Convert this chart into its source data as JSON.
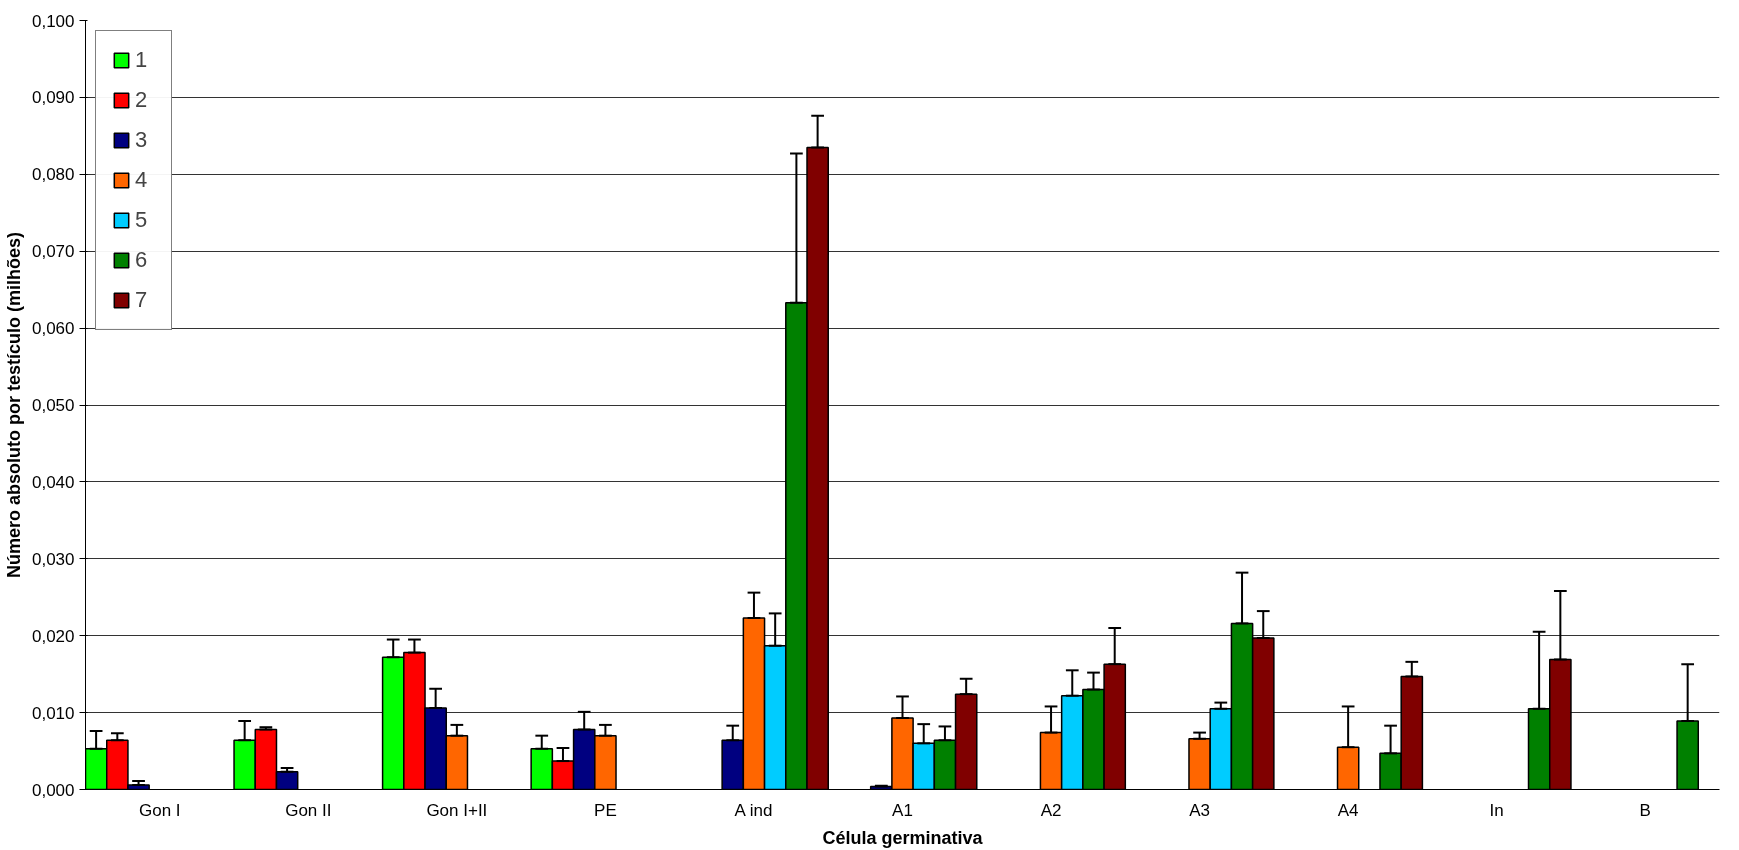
{
  "chart_data": {
    "type": "bar",
    "xlabel": "Célula germinativa",
    "ylabel": "Número absoluto por testículo (milhões)",
    "categories": [
      "Gon I",
      "Gon II",
      "Gon I+II",
      "PE",
      "A ind",
      "A1",
      "A2",
      "A3",
      "A4",
      "In",
      "B"
    ],
    "series": [
      {
        "name": "1",
        "color": "#00ff00",
        "values": [
          0.0053,
          0.0064,
          0.0172,
          0.0053,
          null,
          null,
          null,
          null,
          null,
          null,
          null
        ],
        "errors": [
          [
            0.0053,
            0.0076
          ],
          [
            0.0064,
            0.0089
          ],
          [
            0.0172,
            0.0195
          ],
          [
            0.0053,
            0.007
          ],
          null,
          null,
          null,
          null,
          null,
          null,
          null
        ]
      },
      {
        "name": "2",
        "color": "#ff0000",
        "values": [
          0.0064,
          0.0078,
          0.0178,
          0.0037,
          null,
          null,
          null,
          null,
          null,
          null,
          null
        ],
        "errors": [
          [
            0.0064,
            0.0073
          ],
          [
            0.0078,
            0.0081
          ],
          [
            0.0178,
            0.0195
          ],
          [
            0.0037,
            0.0054
          ],
          null,
          null,
          null,
          null,
          null,
          null,
          null
        ]
      },
      {
        "name": "3",
        "color": "#000080",
        "values": [
          0.0006,
          0.0023,
          0.0106,
          0.0078,
          0.0064,
          0.0004,
          null,
          null,
          null,
          null,
          null
        ],
        "errors": [
          [
            0.0006,
            0.0011
          ],
          [
            0.0023,
            0.0028
          ],
          [
            0.0106,
            0.0131
          ],
          [
            0.0078,
            0.0101
          ],
          [
            0.0064,
            0.0083
          ],
          [
            0.0004,
            0.0005
          ],
          null,
          null,
          null,
          null,
          null
        ]
      },
      {
        "name": "4",
        "color": "#ff6600",
        "values": [
          null,
          null,
          0.007,
          0.007,
          0.0223,
          0.0093,
          0.0074,
          0.0066,
          0.0055,
          null,
          null
        ],
        "errors": [
          null,
          null,
          [
            0.007,
            0.0084
          ],
          [
            0.007,
            0.0084
          ],
          [
            0.0223,
            0.0256
          ],
          [
            0.0093,
            0.0121
          ],
          [
            0.0074,
            0.0108
          ],
          [
            0.0066,
            0.0074
          ],
          [
            0.0055,
            0.0108
          ],
          null,
          null
        ]
      },
      {
        "name": "5",
        "color": "#00ccff",
        "values": [
          null,
          null,
          null,
          null,
          0.0187,
          0.006,
          0.0122,
          0.0105,
          null,
          null,
          null
        ],
        "errors": [
          null,
          null,
          null,
          null,
          [
            0.0187,
            0.0229
          ],
          [
            0.006,
            0.0085
          ],
          [
            0.0122,
            0.0155
          ],
          [
            0.0105,
            0.0113
          ],
          null,
          null,
          null
        ]
      },
      {
        "name": "6",
        "color": "#008000",
        "values": [
          null,
          null,
          null,
          null,
          0.0633,
          0.0064,
          0.013,
          0.0216,
          0.0047,
          0.0105,
          0.0089
        ],
        "errors": [
          null,
          null,
          null,
          null,
          [
            0.0633,
            0.0827
          ],
          [
            0.0064,
            0.0082
          ],
          [
            0.013,
            0.0152
          ],
          [
            0.0216,
            0.0282
          ],
          [
            0.0047,
            0.0083
          ],
          [
            0.0105,
            0.0205
          ],
          [
            0.0089,
            0.0163
          ]
        ]
      },
      {
        "name": "7",
        "color": "#800000",
        "values": [
          null,
          null,
          null,
          null,
          0.0835,
          0.0124,
          0.0163,
          0.0197,
          0.0147,
          0.0169,
          null
        ],
        "errors": [
          null,
          null,
          null,
          null,
          [
            0.0835,
            0.0876
          ],
          [
            0.0124,
            0.0144
          ],
          [
            0.0163,
            0.021
          ],
          [
            0.0197,
            0.0232
          ],
          [
            0.0147,
            0.0166
          ],
          [
            0.0169,
            0.0258
          ],
          null
        ]
      }
    ],
    "ylim": [
      0,
      0.1
    ],
    "yticks": [
      {
        "value": 0,
        "label": "0,000"
      },
      {
        "value": 0.01,
        "label": "0,010"
      },
      {
        "value": 0.02,
        "label": "0,020"
      },
      {
        "value": 0.03,
        "label": "0,030"
      },
      {
        "value": 0.04,
        "label": "0,040"
      },
      {
        "value": 0.05,
        "label": "0,050"
      },
      {
        "value": 0.06,
        "label": "0,060"
      },
      {
        "value": 0.07,
        "label": "0,070"
      },
      {
        "value": 0.08,
        "label": "0,080"
      },
      {
        "value": 0.09,
        "label": "0,090"
      },
      {
        "value": 0.1,
        "label": "0,100"
      }
    ],
    "grid": "y",
    "legend": "top left"
  }
}
